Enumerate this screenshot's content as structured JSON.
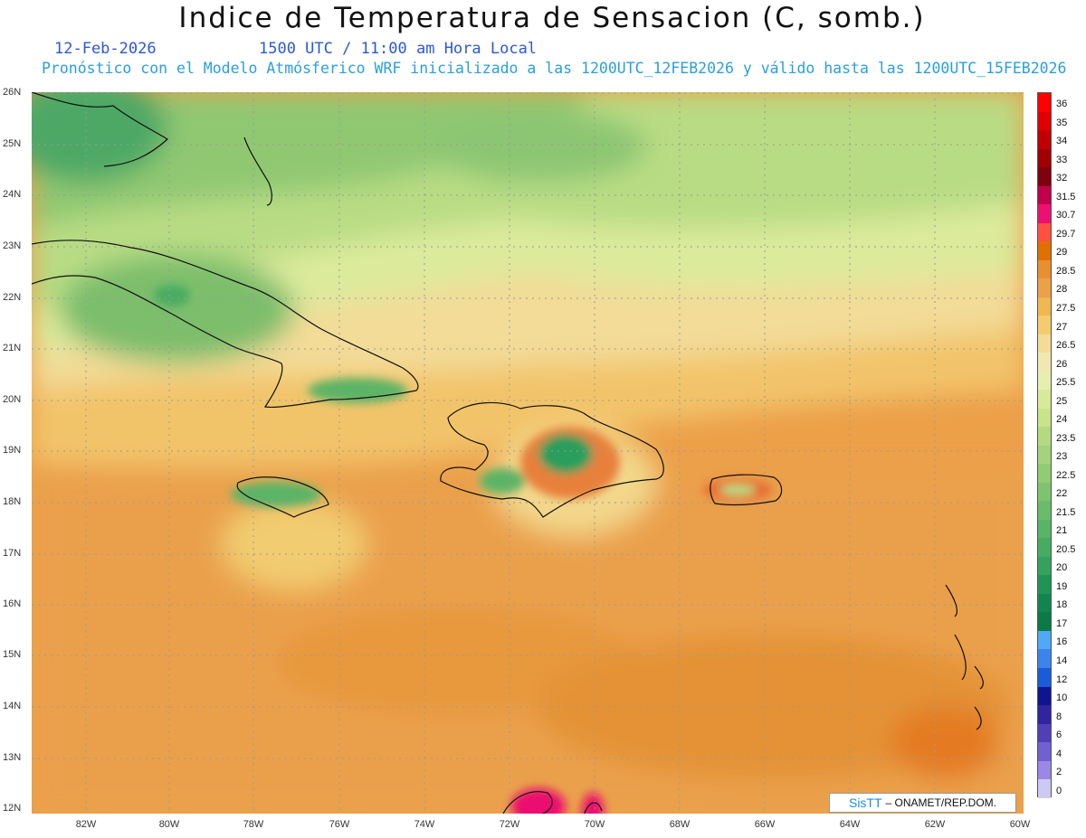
{
  "header": {
    "title": "Indice de Temperatura de Sensacion (C, somb.)",
    "date": "12-Feb-2026",
    "time": "1500 UTC / 11:00 am Hora Local",
    "subtitle": "Pronóstico con el Modelo Atmósferico WRF inicializado a las 1200UTC_12FEB2026 y válido hasta las  1200UTC_15FEB2026"
  },
  "axes": {
    "lat_labels": [
      "26N",
      "25N",
      "24N",
      "23N",
      "22N",
      "21N",
      "20N",
      "19N",
      "18N",
      "17N",
      "16N",
      "15N",
      "14N",
      "13N",
      "12N"
    ],
    "lon_labels": [
      "82W",
      "80W",
      "78W",
      "76W",
      "74W",
      "72W",
      "70W",
      "68W",
      "66W",
      "64W",
      "62W",
      "60W"
    ]
  },
  "colorbar": {
    "levels": [
      "36",
      "35",
      "34",
      "33",
      "32",
      "31.5",
      "30.7",
      "29.7",
      "29",
      "28.5",
      "28",
      "27.5",
      "27",
      "26.5",
      "26",
      "25.5",
      "25",
      "24",
      "23.5",
      "23",
      "22.5",
      "22",
      "21.5",
      "21",
      "20.5",
      "20",
      "19",
      "18",
      "17",
      "16",
      "14",
      "12",
      "10",
      "8",
      "6",
      "4",
      "2",
      "0"
    ],
    "colors": [
      "#ff0000",
      "#e00000",
      "#c00000",
      "#a00000",
      "#800010",
      "#c0004a",
      "#ec1070",
      "#ff5040",
      "#e07000",
      "#e89030",
      "#eca048",
      "#f0b850",
      "#f4cc70",
      "#f4dc98",
      "#f0e8b0",
      "#e6efb0",
      "#d8ea98",
      "#c8e488",
      "#b4da80",
      "#a4d47a",
      "#92cc72",
      "#7ec46e",
      "#6abc6a",
      "#58b466",
      "#46ac62",
      "#34a25c",
      "#209456",
      "#10864e",
      "#0a7a46",
      "#50a8f8",
      "#3c84ec",
      "#1a5cd8",
      "#101490",
      "#3024a0",
      "#5040b8",
      "#7060d0",
      "#9a88e4",
      "#cccaf4"
    ]
  },
  "credit": {
    "logo_text": "SisTT",
    "org": "– ONAMET/REP.DOM."
  }
}
